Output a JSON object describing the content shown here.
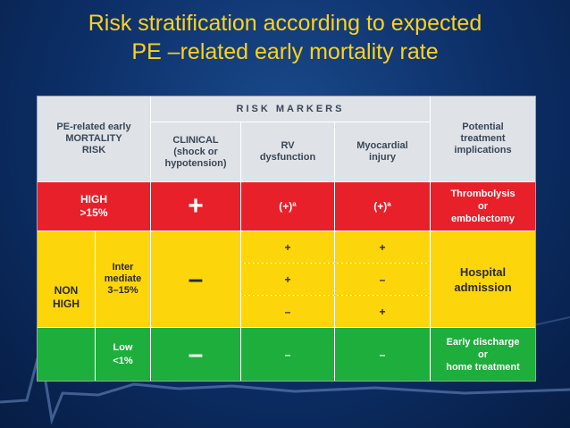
{
  "slide": {
    "title_line1": "Risk stratification according to expected",
    "title_line2": "PE –related early mortality rate"
  },
  "table": {
    "header": {
      "mortality_line1": "PE-related early",
      "mortality_line2": "MORTALITY",
      "mortality_line3": "RISK",
      "risk_markers": "RISK MARKERS",
      "clinical_line1": "CLINICAL",
      "clinical_line2": "(shock or",
      "clinical_line3": "hypotension)",
      "rv_line1": "RV",
      "rv_line2": "dysfunction",
      "myo_line1": "Myocardial",
      "myo_line2": "injury",
      "impl_line1": "Potential",
      "impl_line2": "treatment",
      "impl_line3": "implications"
    },
    "high": {
      "label_line1": "HIGH",
      "label_line2": ">15%",
      "clinical": "+",
      "rv": "(+)ª",
      "myo": "(+)ª",
      "impl_line1": "Thrombolysis",
      "impl_line2": "or",
      "impl_line3": "embolectomy"
    },
    "non_high": {
      "label_line1": "NON",
      "label_line2": "HIGH",
      "intermediate": {
        "label_line1": "Inter",
        "label_line2": "mediate",
        "label_line3": "3–15%",
        "clinical": "–",
        "rows": [
          {
            "rv": "+",
            "myo": "+"
          },
          {
            "rv": "+",
            "myo": "–"
          },
          {
            "rv": "–",
            "myo": "+"
          }
        ],
        "impl_line1": "Hospital",
        "impl_line2": "admission"
      },
      "low": {
        "label_line1": "Low",
        "label_line2": "<1%",
        "clinical": "–",
        "rv": "–",
        "myo": "–",
        "impl_line1": "Early discharge",
        "impl_line2": "or",
        "impl_line3": "home treatment"
      }
    }
  },
  "colors": {
    "title": "#ffd21a",
    "high": "#e8202a",
    "intermediate": "#fcd60a",
    "low": "#1eae3c",
    "header": "#dfe3e8"
  }
}
